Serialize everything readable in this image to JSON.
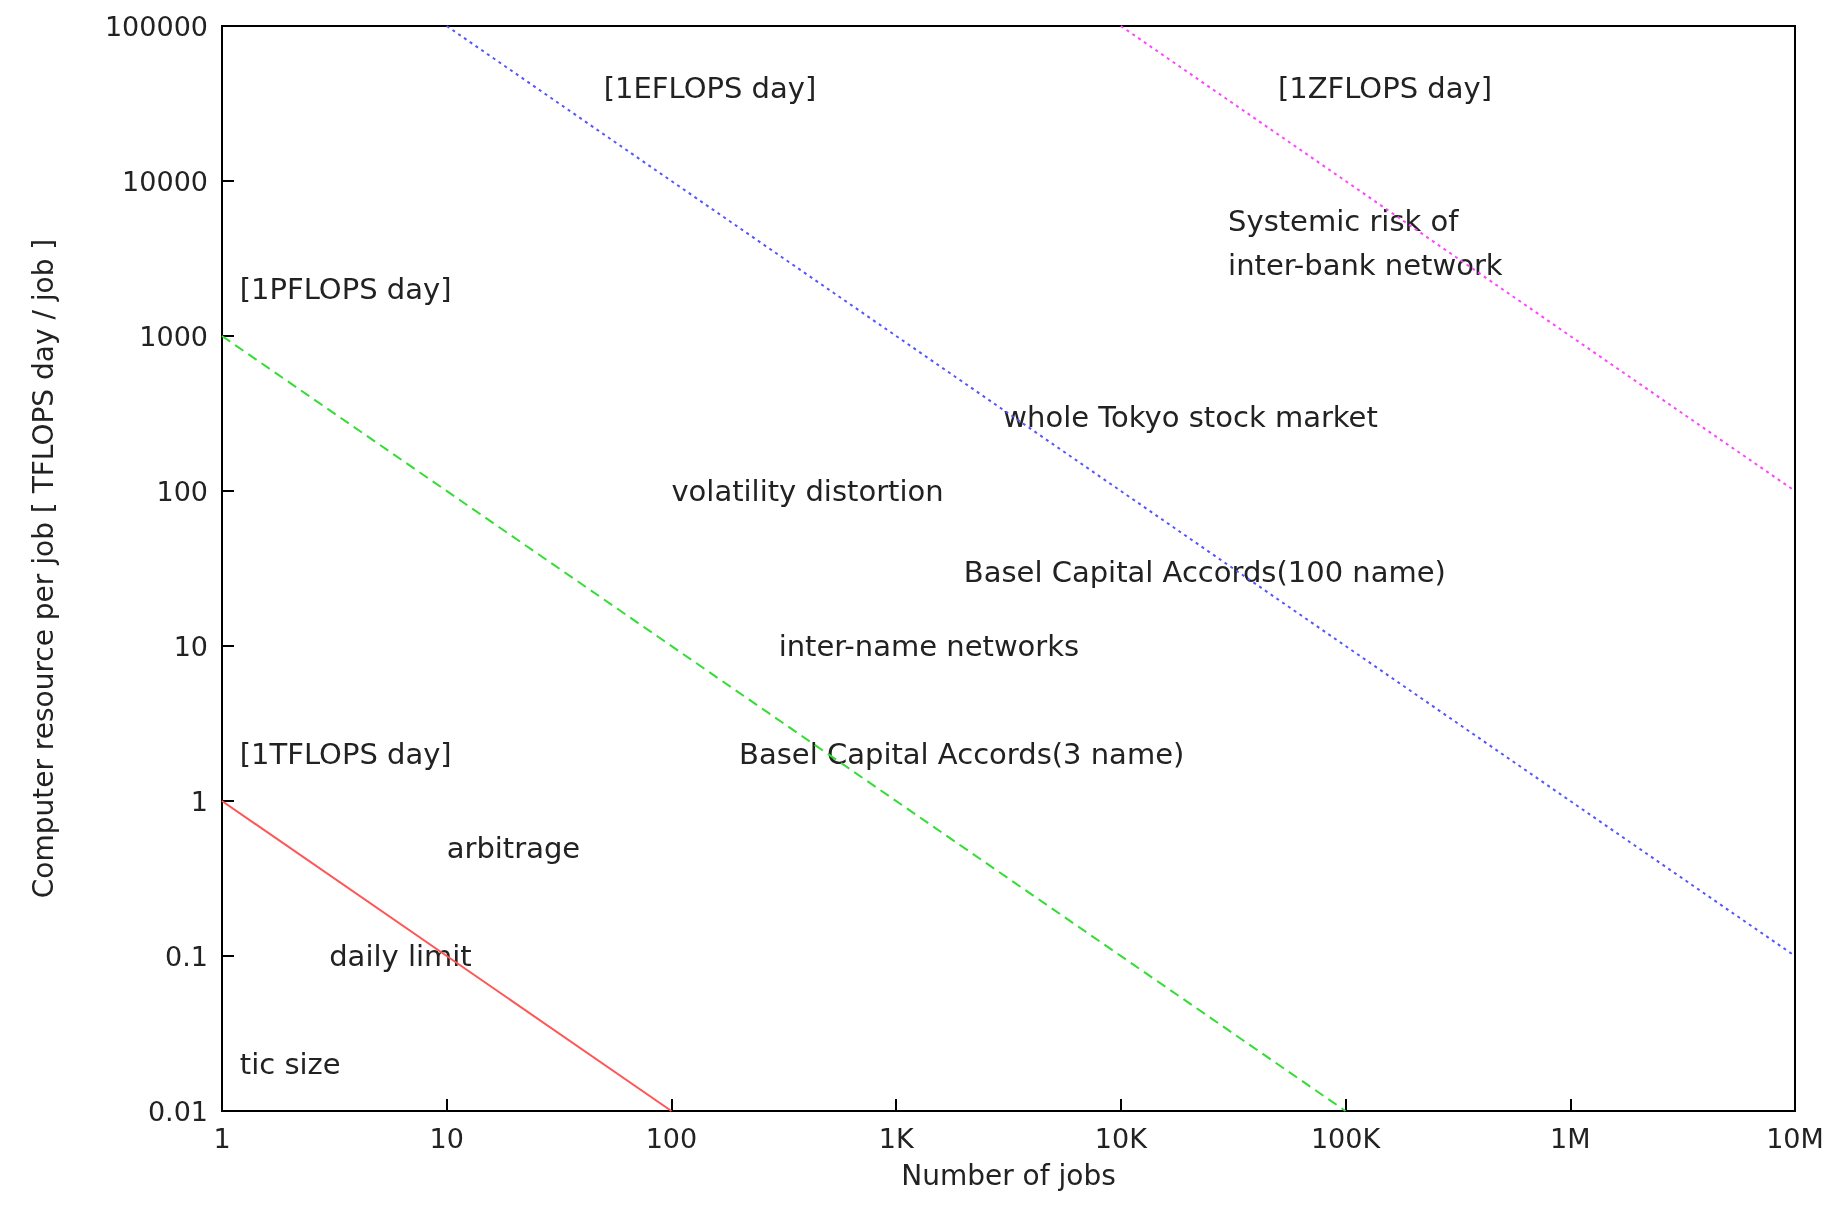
{
  "chart_data": {
    "type": "line",
    "xlabel": "Number of jobs",
    "ylabel": "Computer resource per job [ TFLOPS day / job ]",
    "log": "xy",
    "grid": false,
    "marker": "none",
    "xlim": [
      1,
      10000000
    ],
    "ylim": [
      0.01,
      100000
    ],
    "xticks": [
      1,
      10,
      100,
      {
        "value": 1000,
        "label": "1K"
      },
      {
        "value": 10000,
        "label": "10K"
      },
      {
        "value": 100000,
        "label": "100K"
      },
      {
        "value": 1000000,
        "label": "1M"
      },
      {
        "value": 10000000,
        "label": "10M"
      }
    ],
    "yticks": [
      0.01,
      0.1,
      1,
      10,
      100,
      1000,
      10000,
      100000
    ],
    "series": [
      {
        "color": "#ff5555",
        "line_style": "solid",
        "x": [
          1,
          100
        ],
        "values": [
          1,
          0.01
        ]
      },
      {
        "color": "#33dd33",
        "line_style": "dashed",
        "x": [
          1,
          100000
        ],
        "values": [
          1000,
          0.01
        ]
      },
      {
        "color": "#5555ff",
        "line_style": "dotted",
        "x": [
          10,
          10000000
        ],
        "values": [
          100000,
          0.1
        ]
      },
      {
        "color": "#ff44ff",
        "line_style": "dotted",
        "x": [
          10000,
          10000000
        ],
        "values": [
          100000,
          100
        ]
      }
    ],
    "annotations": [
      "[1EFLOPS day]",
      "[1ZFLOPS day]",
      "Systemic risk of\ninter-bank network",
      "[1PFLOPS day]",
      "whole Tokyo stock market",
      "volatility distortion",
      "Basel Capital Accords(100 name)",
      "inter-name networks",
      "[1TFLOPS day]",
      "Basel Capital Accords(3 name)",
      "arbitrage",
      "daily limit",
      "tic size"
    ]
  }
}
